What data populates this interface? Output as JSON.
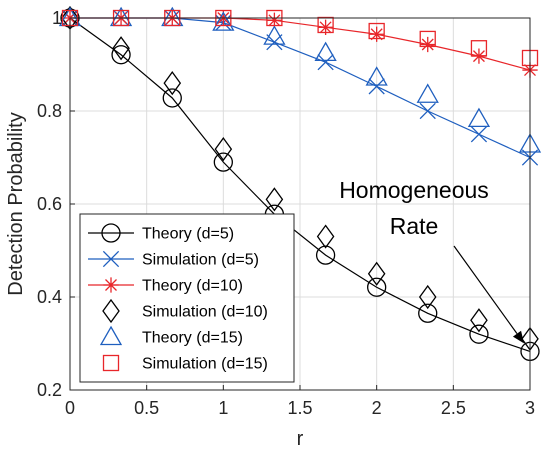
{
  "chart_data": {
    "type": "line",
    "xlabel": "r",
    "ylabel": "Detection Probability",
    "xlim": [
      0,
      3
    ],
    "ylim": [
      0.2,
      1.0
    ],
    "xticks": [
      "0",
      "0.5",
      "1",
      "1.5",
      "2",
      "2.5",
      "3"
    ],
    "yticks": [
      "0.2",
      "0.4",
      "0.6",
      "0.8",
      "1"
    ],
    "grid": true,
    "legend_position": "bottom-left",
    "x": [
      0,
      0.333,
      0.667,
      1.0,
      1.333,
      1.667,
      2.0,
      2.333,
      2.667,
      3.0
    ],
    "series": [
      {
        "name": "Theory (d=5)",
        "marker": "circle",
        "color": "#000000",
        "line": true,
        "values": [
          1.0,
          0.921,
          0.828,
          0.69,
          0.578,
          0.49,
          0.421,
          0.365,
          0.32,
          0.283
        ]
      },
      {
        "name": "Simulation (d=5)",
        "marker": "x",
        "color": "#1f5fbf",
        "line": true,
        "values": [
          1.0,
          1.0,
          1.0,
          0.99,
          0.948,
          0.905,
          0.853,
          0.8,
          0.75,
          0.7
        ]
      },
      {
        "name": "Theory (d=10)",
        "marker": "asterisk",
        "color": "#e8262a",
        "line": true,
        "values": [
          1.0,
          1.0,
          1.0,
          1.0,
          0.995,
          0.98,
          0.965,
          0.943,
          0.918,
          0.888
        ]
      },
      {
        "name": "Simulation (d=10)",
        "marker": "diamond",
        "color": "#000000",
        "line": false,
        "values": [
          1.0,
          0.935,
          0.86,
          0.718,
          0.61,
          0.53,
          0.45,
          0.4,
          0.35,
          0.31
        ]
      },
      {
        "name": "Theory (d=15)",
        "marker": "triangle",
        "color": "#1f5fbf",
        "line": false,
        "values": [
          1.0,
          1.0,
          1.0,
          0.99,
          0.96,
          0.925,
          0.872,
          0.835,
          0.783,
          0.728
        ]
      },
      {
        "name": "Simulation (d=15)",
        "marker": "square",
        "color": "#e8262a",
        "line": false,
        "values": [
          1.0,
          1.0,
          1.0,
          1.0,
          1.0,
          0.985,
          0.972,
          0.955,
          0.935,
          0.914
        ]
      }
    ],
    "annotation": {
      "lines": [
        "Homogeneous",
        "Rate"
      ],
      "points_to": {
        "x": 3.0,
        "y": 0.283
      }
    }
  }
}
